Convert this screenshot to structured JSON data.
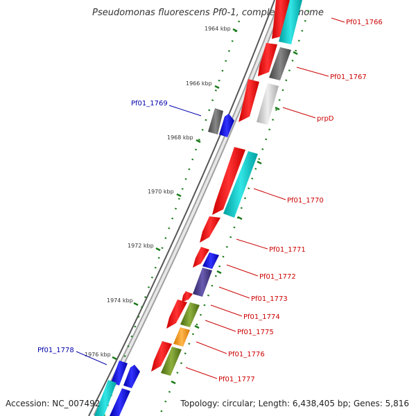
{
  "title": "Pseudomonas fluorescens Pf0-1, complete genome",
  "footer": {
    "accession": "Accession: NC_007492",
    "summary": "Topology: circular; Length: 6,438,405 bp; Genes: 5,816"
  },
  "colors": {
    "forward_label": "#cc0000",
    "reverse_label": "#0000aa",
    "tick": "#1a7a1a",
    "backbone_outer": "#999999",
    "backbone_inner": "#555555"
  },
  "scale_labels": [
    "1964 kbp",
    "1966 kbp",
    "1968 kbp",
    "1970 kbp",
    "1972 kbp",
    "1974 kbp",
    "1976 kbp"
  ],
  "genes": [
    {
      "name": "Pf01_1766",
      "color": "#ff0000",
      "track": "outer-cds"
    },
    {
      "name": "Pf01_1767",
      "color": "#666666",
      "track": "outer-cog"
    },
    {
      "name": "prpD",
      "color": "#cccccc",
      "track": "outer-cog"
    },
    {
      "name": "Pf01_1769",
      "color": "#0000ff",
      "track": "inner-cog"
    },
    {
      "name": "Pf01_1770",
      "color": "#00cccc",
      "track": "outer-cog"
    },
    {
      "name": "Pf01_1771",
      "color": "#ff0000",
      "track": "outer-cds"
    },
    {
      "name": "Pf01_1772",
      "color": "#0000ff",
      "track": "outer-cog"
    },
    {
      "name": "Pf01_1773",
      "color": "#4a3c8c",
      "track": "outer-cog"
    },
    {
      "name": "Pf01_1774",
      "color": "#ff0000",
      "track": "outer-cds"
    },
    {
      "name": "Pf01_1775",
      "color": "#6b8e23",
      "track": "outer-cog"
    },
    {
      "name": "Pf01_1776",
      "color": "#ff9900",
      "track": "outer-cog"
    },
    {
      "name": "Pf01_1777",
      "color": "#6b8e23",
      "track": "outer-cog"
    },
    {
      "name": "Pf01_1778",
      "color": "#0000ff",
      "track": "inner-cog"
    }
  ]
}
